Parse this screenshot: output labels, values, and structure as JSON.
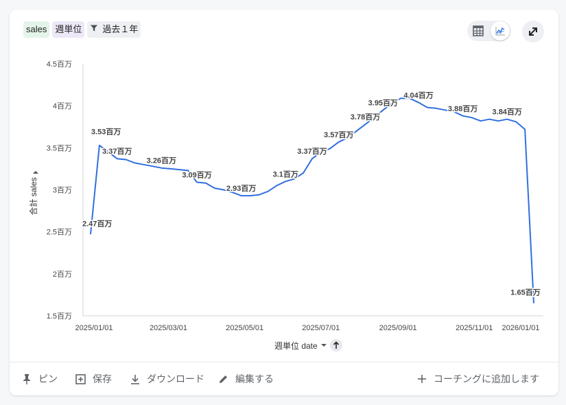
{
  "header": {
    "chips": {
      "measure": "sales",
      "dimension": "週単位",
      "filter": "過去１年"
    },
    "view_toggle": {
      "table_icon": "table-icon",
      "chart_icon": "line-chart-icon",
      "active": "chart"
    },
    "expand_icon": "expand-icon"
  },
  "chart_data": {
    "type": "line",
    "title": "",
    "xlabel": "週単位 date",
    "ylabel": "合計 sales",
    "ylim": [
      1.5,
      4.5
    ],
    "y_ticks": [
      "4.5百万",
      "4百万",
      "3.5百万",
      "3百万",
      "2.5百万",
      "2百万",
      "1.5百万"
    ],
    "x_ticks": [
      "2025/01/01",
      "2025/03/01",
      "2025/05/01",
      "2025/07/01",
      "2025/09/01",
      "2025/11/01",
      "2026/01/01"
    ],
    "grid": false,
    "color": "#2f6fdf",
    "series": [
      {
        "values": [
          2.47,
          3.53,
          3.45,
          3.37,
          3.36,
          3.32,
          3.3,
          3.28,
          3.26,
          3.25,
          3.24,
          3.23,
          3.09,
          3.08,
          3.02,
          3.0,
          2.97,
          2.93,
          2.93,
          2.94,
          2.98,
          3.05,
          3.1,
          3.13,
          3.2,
          3.37,
          3.45,
          3.49,
          3.57,
          3.62,
          3.7,
          3.78,
          3.86,
          3.95,
          4.03,
          4.09,
          4.09,
          4.04,
          3.98,
          3.97,
          3.95,
          3.93,
          3.88,
          3.86,
          3.82,
          3.84,
          3.82,
          3.84,
          3.81,
          3.72,
          1.65
        ]
      }
    ],
    "data_labels": [
      {
        "index": 0,
        "text": "2.47百万"
      },
      {
        "index": 1,
        "text": "3.53百万"
      },
      {
        "index": 3,
        "text": "3.37百万"
      },
      {
        "index": 8,
        "text": "3.26百万"
      },
      {
        "index": 12,
        "text": "3.09百万"
      },
      {
        "index": 17,
        "text": "2.93百万"
      },
      {
        "index": 22,
        "text": "3.1百万"
      },
      {
        "index": 25,
        "text": "3.37百万"
      },
      {
        "index": 28,
        "text": "3.57百万"
      },
      {
        "index": 31,
        "text": "3.78百万"
      },
      {
        "index": 33,
        "text": "3.95百万"
      },
      {
        "index": 37,
        "text": "4.04百万"
      },
      {
        "index": 42,
        "text": "3.88百万"
      },
      {
        "index": 47,
        "text": "3.84百万"
      },
      {
        "index": 50,
        "text": "1.65百万"
      }
    ]
  },
  "footer": {
    "pin": "ピン",
    "save": "保存",
    "download": "ダウンロード",
    "edit": "編集する",
    "add_coaching": "コーチングに追加します"
  }
}
